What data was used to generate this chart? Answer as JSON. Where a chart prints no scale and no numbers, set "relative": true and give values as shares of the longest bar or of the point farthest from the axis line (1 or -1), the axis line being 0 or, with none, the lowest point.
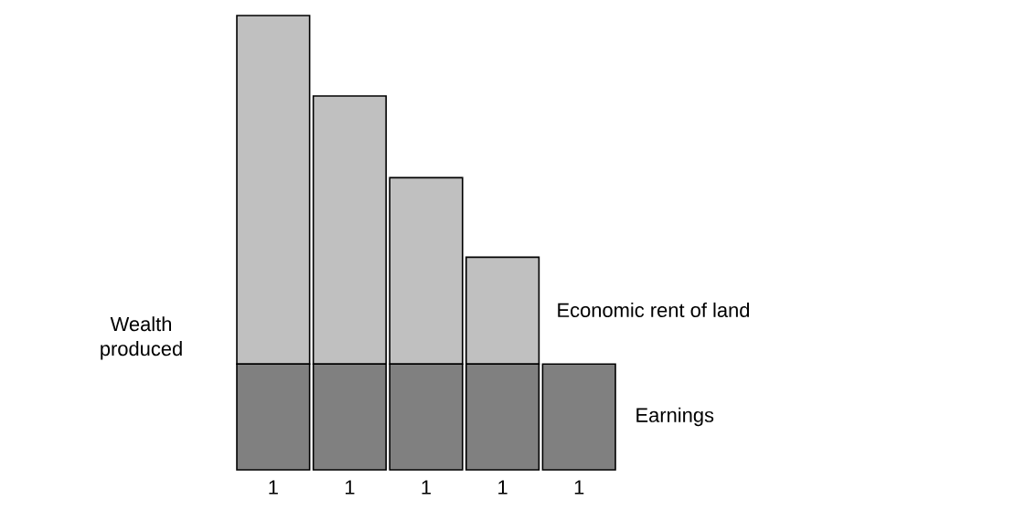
{
  "chart_data": {
    "type": "bar",
    "stacked": true,
    "relative": true,
    "ylabel": "Wealth produced",
    "categories": [
      "1",
      "1",
      "1",
      "1",
      "1"
    ],
    "series": [
      {
        "name": "Earnings",
        "color": "#808080",
        "values": [
          0.233,
          0.233,
          0.233,
          0.233,
          0.233
        ]
      },
      {
        "name": "Economic rent of land",
        "color": "#c0c0c0",
        "values": [
          0.767,
          0.59,
          0.41,
          0.235,
          0
        ]
      }
    ]
  }
}
